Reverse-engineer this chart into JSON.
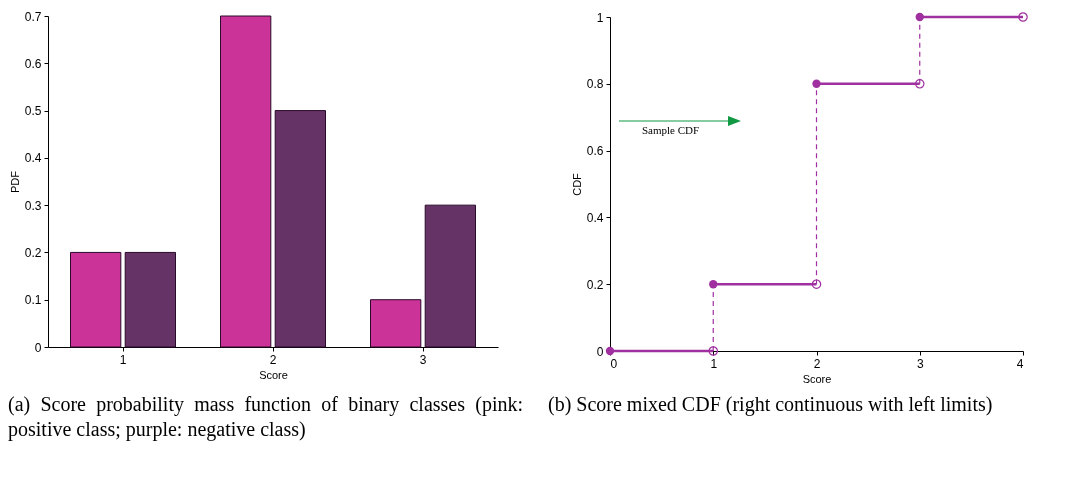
{
  "chart_data": [
    {
      "type": "bar",
      "categories": [
        "1",
        "2",
        "3"
      ],
      "series": [
        {
          "color": "#cc3399",
          "values": [
            0.2,
            0.7,
            0.1
          ]
        },
        {
          "color": "#663366",
          "values": [
            0.2,
            0.5,
            0.3
          ]
        }
      ],
      "xlabel": "Score",
      "ylabel": "PDF",
      "ylim": [
        0,
        0.7
      ],
      "yticks": [
        0,
        0.1,
        0.2,
        0.3,
        0.4,
        0.5,
        0.6,
        0.7
      ],
      "annotations": [
        "(a) Score probability mass function of binary classes (pink: positive class; purple: negative class)"
      ]
    },
    {
      "type": "step",
      "series": [
        {
          "color": "#a030a0",
          "x": [
            0,
            1,
            2,
            3,
            4
          ],
          "values": [
            0,
            0.2,
            0.8,
            1,
            1
          ]
        },
        {
          "type": "scatter",
          "color": "#a030a0",
          "x": [
            1,
            2,
            3,
            4
          ],
          "values": [
            0,
            0.2,
            0.8,
            1
          ]
        }
      ],
      "marker": "circle",
      "xlabel": "Score",
      "ylabel": "CDF",
      "xlim": [
        0,
        4
      ],
      "xticks": [
        0,
        1,
        2,
        3,
        4
      ],
      "ylim": [
        0,
        1
      ],
      "yticks": [
        0,
        0.2,
        0.4,
        0.6,
        0.8,
        1
      ],
      "annotations": [
        "Sample CDF",
        "(b) Score mixed CDF (right continuous with left limits)"
      ]
    }
  ]
}
